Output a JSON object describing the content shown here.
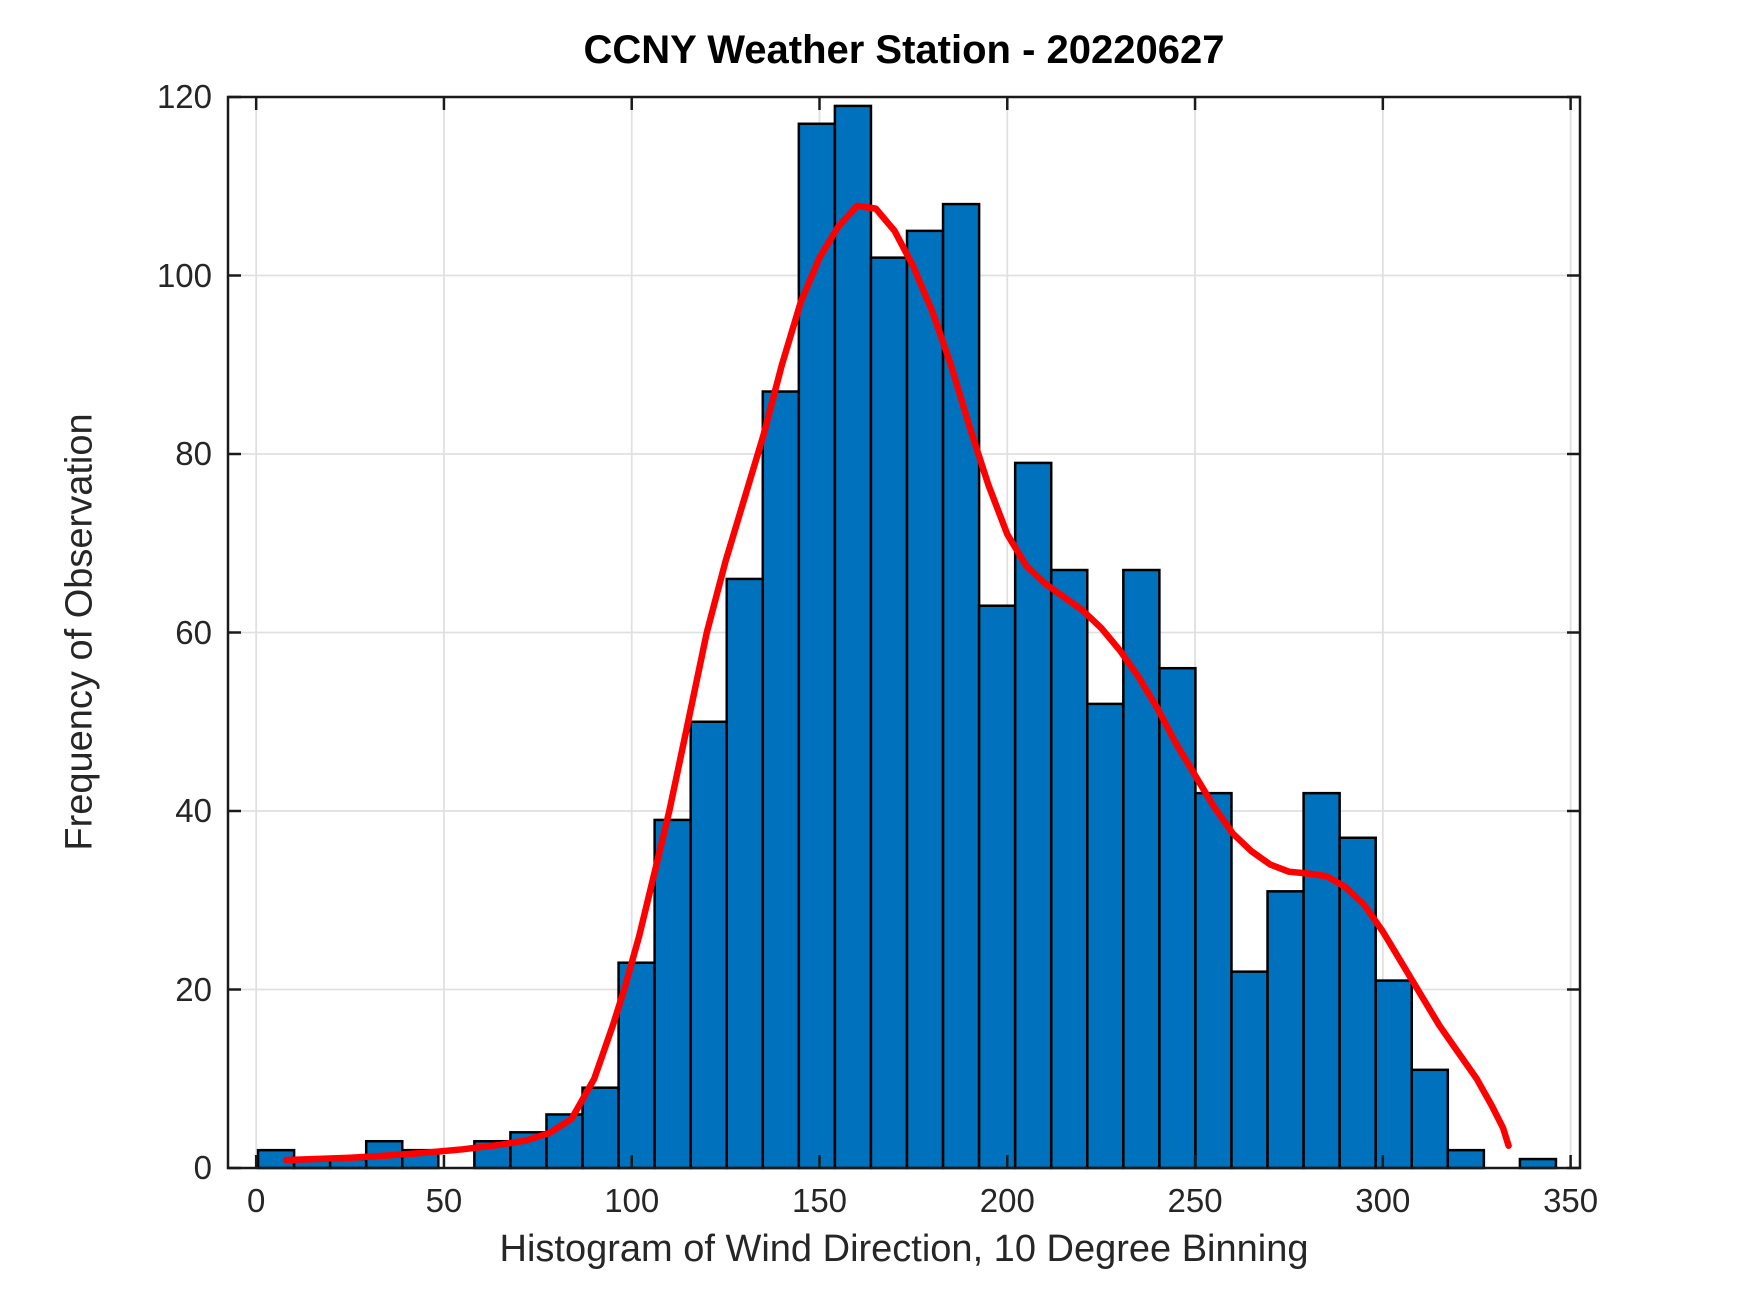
{
  "chart_data": {
    "type": "bar",
    "subtype": "histogram-with-fit-line",
    "title": "CCNY Weather Station - 20220627",
    "xlabel": "Histogram of Wind Direction, 10 Degree Binning",
    "ylabel": "Frequency of Observation",
    "xlim": [
      -7.5,
      352.5
    ],
    "ylim": [
      0,
      120
    ],
    "x_ticks": [
      0,
      50,
      100,
      150,
      200,
      250,
      300,
      350
    ],
    "y_ticks": [
      0,
      20,
      40,
      60,
      80,
      100,
      120
    ],
    "grid": true,
    "legend": "none",
    "bin_start": 0.5,
    "bin_width": 9.6,
    "values": [
      2,
      1,
      1,
      3,
      2,
      0,
      3,
      4,
      6,
      9,
      23,
      39,
      50,
      66,
      87,
      117,
      119,
      102,
      105,
      108,
      63,
      79,
      67,
      52,
      67,
      56,
      42,
      22,
      31,
      42,
      37,
      21,
      11,
      2,
      0,
      1
    ],
    "fit_line_points": [
      [
        8,
        0.9
      ],
      [
        15,
        1.0
      ],
      [
        25,
        1.15
      ],
      [
        35,
        1.4
      ],
      [
        45,
        1.7
      ],
      [
        55,
        2.1
      ],
      [
        65,
        2.6
      ],
      [
        72,
        3.1
      ],
      [
        78,
        3.9
      ],
      [
        84,
        5.5
      ],
      [
        90,
        10
      ],
      [
        95,
        16
      ],
      [
        98,
        20
      ],
      [
        102,
        26
      ],
      [
        106,
        33
      ],
      [
        110,
        40
      ],
      [
        115,
        50
      ],
      [
        120,
        60
      ],
      [
        125,
        68
      ],
      [
        130,
        75
      ],
      [
        135,
        82
      ],
      [
        140,
        90
      ],
      [
        145,
        97
      ],
      [
        150,
        102
      ],
      [
        155,
        105.5
      ],
      [
        160,
        107.8
      ],
      [
        165,
        107.5
      ],
      [
        170,
        105
      ],
      [
        175,
        101
      ],
      [
        180,
        96
      ],
      [
        185,
        90
      ],
      [
        190,
        83
      ],
      [
        195,
        76.5
      ],
      [
        200,
        71
      ],
      [
        205,
        67.5
      ],
      [
        210,
        65.5
      ],
      [
        215,
        64
      ],
      [
        220,
        62.5
      ],
      [
        225,
        60.5
      ],
      [
        230,
        58
      ],
      [
        235,
        55
      ],
      [
        240,
        51.5
      ],
      [
        245,
        47.5
      ],
      [
        250,
        44
      ],
      [
        255,
        40.5
      ],
      [
        260,
        37.5
      ],
      [
        265,
        35.5
      ],
      [
        270,
        34
      ],
      [
        275,
        33.2
      ],
      [
        280,
        33
      ],
      [
        285,
        32.7
      ],
      [
        290,
        31.5
      ],
      [
        295,
        29.5
      ],
      [
        300,
        26.5
      ],
      [
        305,
        23
      ],
      [
        310,
        19.5
      ],
      [
        315,
        16
      ],
      [
        320,
        13
      ],
      [
        325,
        10
      ],
      [
        329,
        7
      ],
      [
        332,
        4.5
      ],
      [
        333.5,
        2.5
      ]
    ],
    "colors": {
      "bar_fill": "#0072BD",
      "bar_edge": "#000000",
      "fit_line": "#FF0000",
      "grid": "#E0E0E0",
      "axis": "#1A1A1A",
      "tick_text": "#262626",
      "background": "#FFFFFF"
    }
  }
}
